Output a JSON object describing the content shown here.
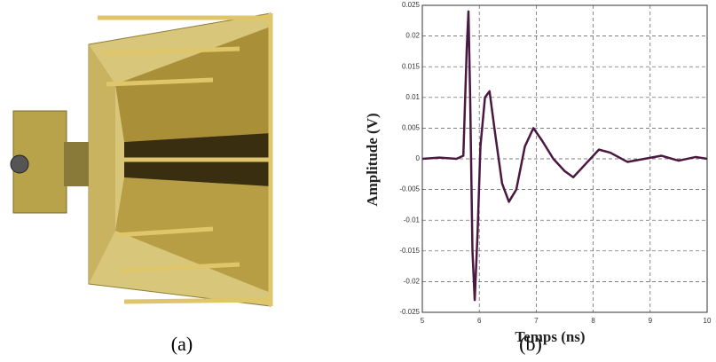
{
  "captions": [
    "(a)",
    "(b)"
  ],
  "chart_data": {
    "type": "line",
    "xlabel": "Temps (ns)",
    "ylabel": "Amplitude (V)",
    "x": [
      5.0,
      5.3,
      5.6,
      5.72,
      5.78,
      5.81,
      5.84,
      5.88,
      5.92,
      5.97,
      6.02,
      6.1,
      6.18,
      6.28,
      6.4,
      6.52,
      6.65,
      6.8,
      6.95,
      7.1,
      7.3,
      7.5,
      7.65,
      7.85,
      8.1,
      8.3,
      8.6,
      8.9,
      9.2,
      9.5,
      9.8,
      10.0
    ],
    "values": [
      0,
      0.0002,
      0,
      0.0005,
      0.018,
      0.024,
      0.01,
      -0.015,
      -0.023,
      -0.012,
      0.002,
      0.01,
      0.011,
      0.004,
      -0.004,
      -0.007,
      -0.005,
      0.002,
      0.005,
      0.003,
      0,
      -0.002,
      -0.003,
      -0.001,
      0.0015,
      0.001,
      -0.0005,
      0,
      0.0005,
      -0.0003,
      0.0003,
      0
    ],
    "color": "#4b1840",
    "xlim": [
      5,
      10
    ],
    "xticks": [
      5,
      6,
      7,
      8,
      9,
      10
    ],
    "ylim": [
      -0.025,
      0.025
    ],
    "yticks": [
      -0.025,
      -0.02,
      -0.015,
      -0.01,
      -0.005,
      0,
      0.005,
      0.01,
      0.015,
      0.02,
      0.025
    ],
    "grid": true
  }
}
